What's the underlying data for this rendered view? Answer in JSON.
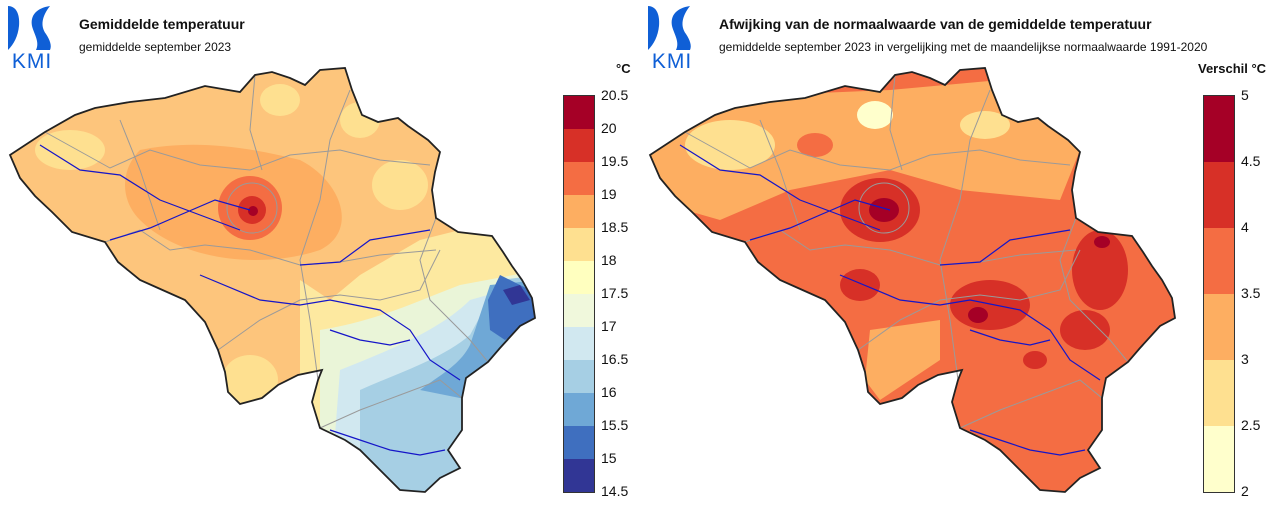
{
  "logo_text": "KMI",
  "left": {
    "title": "Gemiddelde temperatuur",
    "subtitle": "gemiddelde september 2023",
    "unit": "°C",
    "legend_ticks": [
      "20.5",
      "20",
      "19.5",
      "19",
      "18.5",
      "18",
      "17.5",
      "17",
      "16.5",
      "16",
      "15.5",
      "15",
      "14.5"
    ],
    "legend_colors": [
      "#a50026",
      "#d73027",
      "#f46d43",
      "#fdae61",
      "#fee090",
      "#ffffbf",
      "#f0f8dc",
      "#d1e8f0",
      "#a6cfe4",
      "#6fa8d6",
      "#3f6fbf",
      "#313695"
    ]
  },
  "right": {
    "title": "Afwijking van de normaalwaarde van de gemiddelde temperatuur",
    "subtitle": "gemiddelde september 2023 in vergelijking met de maandelijkse normaalwaarde 1991-2020",
    "unit": "Verschil °C",
    "legend_ticks": [
      "5",
      "4.5",
      "4",
      "3.5",
      "3",
      "2.5",
      "2"
    ],
    "legend_colors": [
      "#a50026",
      "#d73027",
      "#f46d43",
      "#fdae61",
      "#fee090",
      "#ffffcc"
    ]
  },
  "colors": {
    "logo_blue": "#0f5fd6",
    "river": "#1515c8",
    "border": "#9a9a9a",
    "outline": "#222222"
  }
}
